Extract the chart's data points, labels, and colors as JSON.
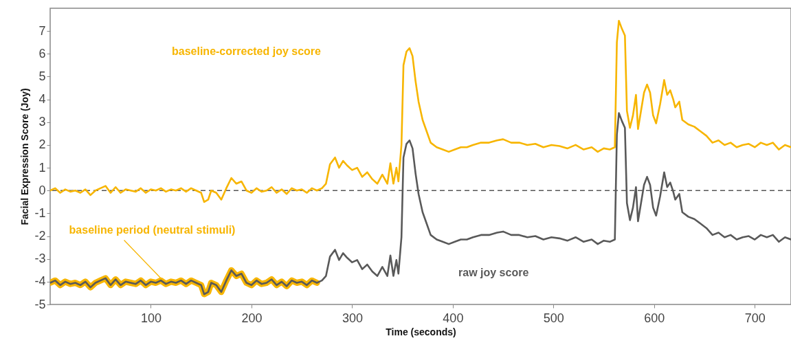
{
  "chart_data": {
    "type": "line",
    "xlabel": "Time (seconds)",
    "ylabel": "Facial Expression Score (Joy)",
    "xlim": [
      0,
      736
    ],
    "ylim": [
      -5,
      8
    ],
    "xticks": [
      100,
      200,
      300,
      400,
      500,
      600,
      700
    ],
    "yticks": [
      -5,
      -4,
      -3,
      -2,
      -1,
      0,
      1,
      2,
      3,
      4,
      5,
      6,
      7
    ],
    "grid": false,
    "legend": false,
    "marker": "none",
    "line_style": "solid",
    "x": [
      0,
      5,
      10,
      15,
      20,
      25,
      30,
      35,
      40,
      45,
      50,
      55,
      60,
      65,
      70,
      75,
      80,
      85,
      90,
      95,
      100,
      105,
      110,
      115,
      120,
      125,
      130,
      135,
      140,
      145,
      150,
      153,
      157,
      160,
      165,
      170,
      175,
      180,
      185,
      190,
      195,
      200,
      205,
      210,
      215,
      220,
      225,
      230,
      235,
      240,
      245,
      250,
      255,
      260,
      265,
      270,
      274,
      278,
      283,
      287,
      291,
      295,
      300,
      305,
      310,
      315,
      320,
      325,
      330,
      335,
      338,
      341,
      344,
      346,
      349,
      351,
      354,
      357,
      360,
      363,
      366,
      370,
      374,
      378,
      384,
      390,
      396,
      402,
      408,
      414,
      420,
      428,
      436,
      444,
      450,
      458,
      466,
      474,
      482,
      490,
      498,
      506,
      514,
      522,
      530,
      538,
      544,
      550,
      556,
      561,
      563,
      565,
      568,
      571,
      573,
      576,
      579,
      582,
      584,
      587,
      590,
      593,
      596,
      599,
      602,
      606,
      610,
      613,
      616,
      619,
      621,
      625,
      628,
      634,
      640,
      646,
      652,
      658,
      664,
      670,
      676,
      682,
      688,
      694,
      700,
      706,
      712,
      718,
      724,
      730,
      736
    ],
    "series": [
      {
        "color": "#f7b500",
        "x": [
          0,
          5,
          10,
          15,
          20,
          25,
          30,
          35,
          40,
          45,
          50,
          55,
          60,
          65,
          70,
          75,
          80,
          85,
          90,
          95,
          100,
          105,
          110,
          115,
          120,
          125,
          130,
          135,
          140,
          145,
          150,
          153,
          157,
          160,
          165,
          170,
          175,
          180,
          185,
          190,
          195,
          200,
          205,
          210,
          215,
          220,
          225,
          230,
          235,
          240,
          245,
          250,
          255,
          260,
          265
        ],
        "values": [
          -4.05,
          -3.95,
          -4.15,
          -4.0,
          -4.1,
          -4.05,
          -4.15,
          -4.0,
          -4.25,
          -4.05,
          -3.95,
          -3.85,
          -4.15,
          -3.9,
          -4.15,
          -4.0,
          -4.05,
          -4.1,
          -3.95,
          -4.15,
          -4.0,
          -4.05,
          -3.95,
          -4.1,
          -4.0,
          -4.05,
          -3.95,
          -4.1,
          -3.95,
          -4.05,
          -4.15,
          -4.55,
          -4.45,
          -4.05,
          -4.15,
          -4.45,
          -3.95,
          -3.5,
          -3.75,
          -3.65,
          -4.05,
          -4.15,
          -3.95,
          -4.1,
          -4.05,
          -3.9,
          -4.15,
          -4.0,
          -4.2,
          -3.95,
          -4.05,
          -4.0,
          -4.15,
          -3.95,
          -4.05
        ]
      },
      {
        "color": "#595959",
        "values": [
          -4.05,
          -3.95,
          -4.15,
          -4.0,
          -4.1,
          -4.05,
          -4.15,
          -4.0,
          -4.25,
          -4.05,
          -3.95,
          -3.85,
          -4.15,
          -3.9,
          -4.15,
          -4.0,
          -4.05,
          -4.1,
          -3.95,
          -4.15,
          -4.0,
          -4.05,
          -3.95,
          -4.1,
          -4.0,
          -4.05,
          -3.95,
          -4.1,
          -3.95,
          -4.05,
          -4.15,
          -4.55,
          -4.45,
          -4.05,
          -4.15,
          -4.45,
          -3.95,
          -3.5,
          -3.75,
          -3.65,
          -4.05,
          -4.15,
          -3.95,
          -4.1,
          -4.05,
          -3.9,
          -4.15,
          -4.0,
          -4.2,
          -3.95,
          -4.05,
          -4.0,
          -4.15,
          -3.95,
          -4.05,
          -3.95,
          -3.75,
          -2.9,
          -2.6,
          -3.05,
          -2.75,
          -2.95,
          -3.15,
          -3.05,
          -3.45,
          -3.25,
          -3.55,
          -3.75,
          -3.35,
          -3.75,
          -2.85,
          -3.75,
          -3.05,
          -3.65,
          -2.05,
          1.45,
          2.05,
          2.2,
          1.85,
          0.75,
          -0.15,
          -0.95,
          -1.45,
          -1.95,
          -2.15,
          -2.25,
          -2.35,
          -2.25,
          -2.15,
          -2.15,
          -2.05,
          -1.95,
          -1.95,
          -1.85,
          -1.8,
          -1.95,
          -1.95,
          -2.05,
          -2.0,
          -2.15,
          -2.05,
          -2.1,
          -2.2,
          -2.05,
          -2.25,
          -2.15,
          -2.35,
          -2.2,
          -2.25,
          -2.15,
          2.45,
          3.4,
          3.05,
          2.75,
          -0.55,
          -1.3,
          -0.75,
          0.15,
          -1.35,
          -0.55,
          0.25,
          0.6,
          0.25,
          -0.75,
          -1.1,
          -0.25,
          0.8,
          0.15,
          0.35,
          -0.05,
          -0.4,
          -0.15,
          -0.95,
          -1.15,
          -1.25,
          -1.45,
          -1.65,
          -1.95,
          -1.85,
          -2.05,
          -1.95,
          -2.15,
          -2.05,
          -2.0,
          -2.15,
          -1.95,
          -2.05,
          -1.95,
          -2.25,
          -2.05,
          -2.15
        ]
      },
      {
        "color": "#f7b500",
        "values": [
          0.0,
          0.1,
          -0.1,
          0.05,
          -0.05,
          0.0,
          -0.1,
          0.05,
          -0.2,
          0.0,
          0.1,
          0.2,
          -0.1,
          0.15,
          -0.1,
          0.05,
          0.0,
          -0.05,
          0.1,
          -0.1,
          0.05,
          0.0,
          0.1,
          -0.05,
          0.05,
          0.0,
          0.1,
          -0.05,
          0.1,
          0.0,
          -0.1,
          -0.5,
          -0.4,
          0.0,
          -0.1,
          -0.4,
          0.1,
          0.55,
          0.3,
          0.4,
          0.0,
          -0.1,
          0.1,
          -0.05,
          0.0,
          0.15,
          -0.1,
          0.05,
          -0.15,
          0.1,
          0.0,
          0.05,
          -0.1,
          0.1,
          0.0,
          0.1,
          0.3,
          1.15,
          1.45,
          1.0,
          1.3,
          1.1,
          0.9,
          1.0,
          0.6,
          0.8,
          0.5,
          0.3,
          0.7,
          0.3,
          1.2,
          0.3,
          1.0,
          0.4,
          2.0,
          5.5,
          6.1,
          6.25,
          5.9,
          4.8,
          3.9,
          3.1,
          2.6,
          2.1,
          1.9,
          1.8,
          1.7,
          1.8,
          1.9,
          1.9,
          2.0,
          2.1,
          2.1,
          2.2,
          2.25,
          2.1,
          2.1,
          2.0,
          2.05,
          1.9,
          2.0,
          1.95,
          1.85,
          2.0,
          1.8,
          1.9,
          1.7,
          1.85,
          1.8,
          1.9,
          6.5,
          7.45,
          7.1,
          6.8,
          3.5,
          2.75,
          3.3,
          4.2,
          2.7,
          3.5,
          4.3,
          4.65,
          4.3,
          3.3,
          2.95,
          3.8,
          4.85,
          4.2,
          4.4,
          4.0,
          3.65,
          3.9,
          3.1,
          2.9,
          2.8,
          2.6,
          2.4,
          2.1,
          2.2,
          2.0,
          2.1,
          1.9,
          2.0,
          2.05,
          1.9,
          2.1,
          2.0,
          2.1,
          1.8,
          2.0,
          1.9
        ]
      }
    ],
    "ref_lines": [
      {
        "axis": "y",
        "value": 0,
        "color": "#555555",
        "line_style": "dashed"
      }
    ],
    "annotations": [
      "baseline-corrected joy score",
      "raw joy score",
      {
        "text": "baseline period (neutral stimuli)",
        "x": 111,
        "y": -3.9
      }
    ]
  }
}
